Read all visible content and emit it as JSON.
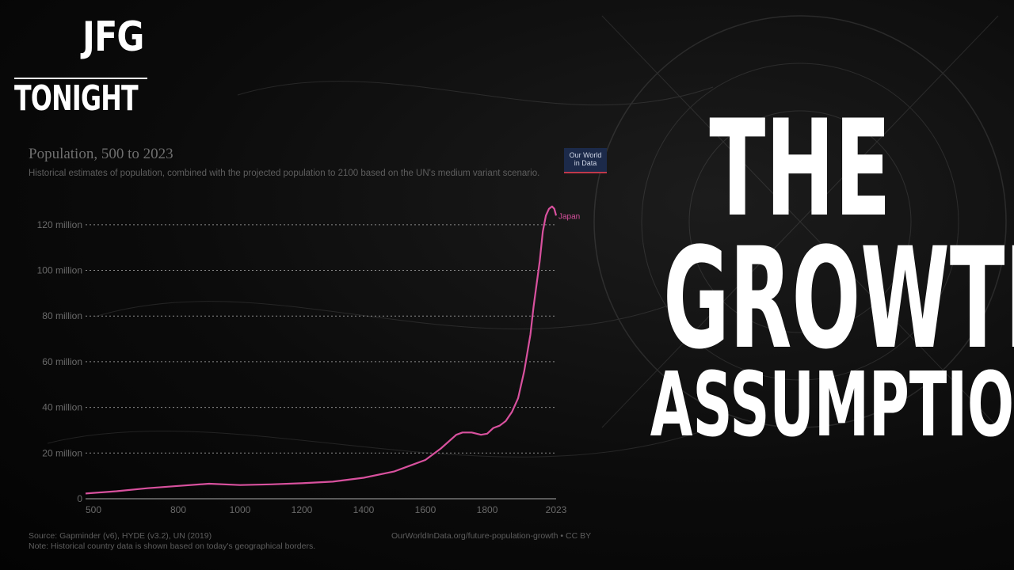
{
  "logo": {
    "top": "JFG",
    "bottom": "TONIGHT"
  },
  "headline": {
    "line1": "THE",
    "line2": "GROWTH",
    "line3": "ASSUMPTION"
  },
  "badge": {
    "line1": "Our World",
    "line2": "in Data",
    "color": "#1c2a4a",
    "accent": "#c0384a"
  },
  "colors": {
    "series": "#d8519e",
    "gridline": "#8a8a8a"
  },
  "chart_data": {
    "type": "line",
    "title": "Population, 500 to 2023",
    "subtitle": "Historical estimates of population, combined with the projected population to 2100 based on the UN's medium variant scenario.",
    "xlabel": "",
    "ylabel": "",
    "xlim": [
      500,
      2023
    ],
    "ylim": [
      0,
      130
    ],
    "y_unit": "million",
    "x_ticks": [
      500,
      800,
      1000,
      1200,
      1400,
      1600,
      1800,
      2023
    ],
    "x_tick_labels": [
      "500",
      "800",
      "1000",
      "1200",
      "1400",
      "1600",
      "1800",
      "2023"
    ],
    "y_ticks": [
      0,
      20,
      40,
      60,
      80,
      100,
      120
    ],
    "y_tick_labels": [
      "0",
      "20 million",
      "40 million",
      "60 million",
      "80 million",
      "100 million",
      "120 million"
    ],
    "grid": true,
    "legend": "end-of-line label",
    "series": [
      {
        "name": "Japan",
        "points": [
          [
            500,
            2.3
          ],
          [
            600,
            3.3
          ],
          [
            700,
            4.6
          ],
          [
            800,
            5.6
          ],
          [
            900,
            6.6
          ],
          [
            1000,
            6.0
          ],
          [
            1100,
            6.3
          ],
          [
            1200,
            6.8
          ],
          [
            1300,
            7.5
          ],
          [
            1400,
            9.2
          ],
          [
            1500,
            12.0
          ],
          [
            1550,
            14.5
          ],
          [
            1600,
            17.0
          ],
          [
            1650,
            22.0
          ],
          [
            1700,
            28.0
          ],
          [
            1720,
            29.0
          ],
          [
            1750,
            29.0
          ],
          [
            1780,
            28.0
          ],
          [
            1800,
            28.5
          ],
          [
            1820,
            31.0
          ],
          [
            1840,
            32.0
          ],
          [
            1860,
            34.0
          ],
          [
            1880,
            38.0
          ],
          [
            1900,
            44.0
          ],
          [
            1920,
            56.0
          ],
          [
            1940,
            72.0
          ],
          [
            1950,
            84.0
          ],
          [
            1960,
            94.0
          ],
          [
            1970,
            104.0
          ],
          [
            1980,
            117.0
          ],
          [
            1990,
            124.0
          ],
          [
            2000,
            127.0
          ],
          [
            2010,
            128.0
          ],
          [
            2017,
            127.0
          ],
          [
            2023,
            124.0
          ]
        ]
      }
    ]
  },
  "source": {
    "line1": "Source: Gapminder (v6), HYDE (v3.2), UN (2019)",
    "line2": "Note: Historical country data is shown based on today's geographical borders.",
    "right": "OurWorldInData.org/future-population-growth • CC BY"
  }
}
